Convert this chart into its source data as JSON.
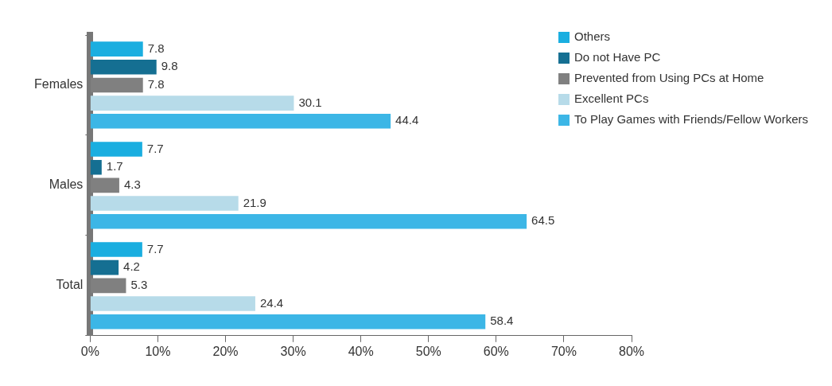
{
  "chart_data": {
    "type": "bar",
    "orientation": "horizontal",
    "categories": [
      "Females",
      "Males",
      "Total"
    ],
    "series": [
      {
        "name": "Others",
        "color": "#1aaee0",
        "values": [
          7.8,
          7.7,
          7.7
        ]
      },
      {
        "name": "Do not Have PC",
        "color": "#156f92",
        "values": [
          9.8,
          1.7,
          4.2
        ]
      },
      {
        "name": "Prevented from Using PCs at Home",
        "color": "#808080",
        "values": [
          7.8,
          4.3,
          5.3
        ]
      },
      {
        "name": "Excellent PCs",
        "color": "#b7dbe9",
        "values": [
          30.1,
          21.9,
          24.4
        ]
      },
      {
        "name": "To Play Games with Friends/Fellow Workers",
        "color": "#3cb6e6",
        "values": [
          44.4,
          64.5,
          58.4
        ]
      }
    ],
    "xlim": [
      0,
      80
    ],
    "xticks": [
      {
        "value": 0,
        "label": "0%"
      },
      {
        "value": 10,
        "label": "10%"
      },
      {
        "value": 20,
        "label": "20%"
      },
      {
        "value": 30,
        "label": "30%"
      },
      {
        "value": 40,
        "label": "40%"
      },
      {
        "value": 50,
        "label": "50%"
      },
      {
        "value": 60,
        "label": "60%"
      },
      {
        "value": 70,
        "label": "70%"
      },
      {
        "value": 80,
        "label": "80%"
      }
    ],
    "data_labels": true,
    "legend": "top right",
    "grid": false
  }
}
